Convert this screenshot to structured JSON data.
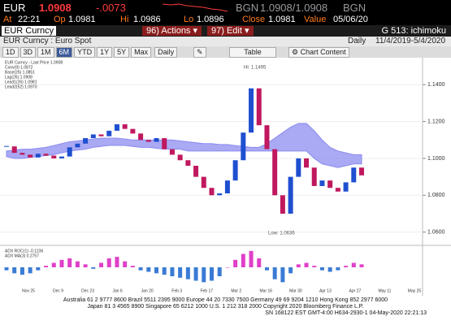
{
  "header": {
    "ticker": "EUR",
    "last": "1.0908",
    "change": "-.0073",
    "source_left": "BGN",
    "bid_ask": "1.0908/1.0908",
    "source_right": "BGN",
    "time_label": "At",
    "time": "22:21",
    "open_label": "Op",
    "open": "1.0981",
    "high_label": "Hi",
    "high": "1.0986",
    "low_label": "Lo",
    "low": "1.0896",
    "close_label": "Close",
    "close": "1.0981",
    "value_label": "Value",
    "value_date": "05/06/20"
  },
  "toolbar": {
    "security": "EUR Curncy",
    "actions_num": "96)",
    "actions": "Actions",
    "edit_num": "97)",
    "edit": "Edit",
    "page_id": "G 513: ichimoku"
  },
  "subheader": {
    "name": "EUR Curncy : Euro Spot",
    "frequency": "Daily",
    "range": "11/4/2019-5/4/2020"
  },
  "controls": {
    "buttons": [
      "1D",
      "3D",
      "1M",
      "6M",
      "YTD",
      "1Y",
      "5Y",
      "Max"
    ],
    "active": 3,
    "period": "Daily",
    "table": "Table",
    "chart_content": "Chart Content"
  },
  "chart_data": {
    "type": "candlestick",
    "legend": [
      "EUR Curncy - Last Price 1.0908",
      "Conv(9) 1.0872",
      "Base(26) 1.0851",
      "Lag(26) 1.0908",
      "Lead1(26) 1.0981",
      "Lead2(52) 1.0970"
    ],
    "annotations": [
      "Hi: 1.1495",
      "Low: 1.0636"
    ],
    "values": [
      1.1065,
      1.103,
      1.102,
      1.1005,
      1.1025,
      1.1015,
      1.1,
      1.101,
      1.106,
      1.108,
      1.111,
      1.113,
      1.112,
      1.115,
      1.1185,
      1.116,
      1.1135,
      1.11,
      1.109,
      1.111,
      1.105,
      1.102,
      1.099,
      1.096,
      1.09,
      1.084,
      1.08,
      1.081,
      1.088,
      1.099,
      1.114,
      1.138,
      1.118,
      1.105,
      1.08,
      1.07,
      1.09,
      1.1,
      1.095,
      1.085,
      1.088,
      1.084,
      1.082,
      1.087,
      1.095,
      1.0908
    ],
    "up_color": "#1f4fd0",
    "down_color": "#c0185e",
    "cloud_top": [
      1.104,
      1.1045,
      1.105,
      1.105,
      1.1055,
      1.106,
      1.107,
      1.108,
      1.109,
      1.1095,
      1.11,
      1.1105,
      1.111,
      1.111,
      1.111,
      1.1105,
      1.11,
      1.11,
      1.11,
      1.11,
      1.11,
      1.11,
      1.1095,
      1.109,
      1.1085,
      1.108,
      1.108,
      1.1075,
      1.1075,
      1.107,
      1.1065,
      1.106,
      1.106,
      1.108,
      1.111,
      1.114,
      1.117,
      1.119,
      1.119,
      1.115,
      1.11,
      1.106,
      1.104,
      1.103,
      1.102,
      1.102
    ],
    "cloud_bottom": [
      1.101,
      1.1,
      1.1,
      1.1005,
      1.101,
      1.1015,
      1.102,
      1.103,
      1.104,
      1.1045,
      1.105,
      1.106,
      1.1065,
      1.107,
      1.107,
      1.107,
      1.1065,
      1.106,
      1.106,
      1.1055,
      1.105,
      1.105,
      1.105,
      1.104,
      1.104,
      1.104,
      1.104,
      1.104,
      1.104,
      1.104,
      1.104,
      1.104,
      1.104,
      1.104,
      1.104,
      1.104,
      1.104,
      1.104,
      1.104,
      1.1,
      1.097,
      1.096,
      1.095,
      1.096,
      1.097,
      1.097
    ],
    "cloud_color": "#8c8cf0",
    "ylim": [
      1.055,
      1.152
    ],
    "yticks": [
      {
        "value": 1.06,
        "label": "1.0600"
      },
      {
        "value": 1.08,
        "label": "1.0800"
      },
      {
        "value": 1.1,
        "label": "1.1000"
      },
      {
        "value": 1.12,
        "label": "1.1200"
      },
      {
        "value": 1.14,
        "label": "1.1400"
      }
    ],
    "xtick_labels": [
      "Nov 25",
      "Dec 9",
      "Dec 23",
      "Jan 6",
      "Jan 20",
      "Feb 3",
      "Feb 17",
      "Mar 2",
      "Mar 16",
      "Mar 30",
      "Apr 13",
      "Apr 27",
      "May 11",
      "May 25"
    ],
    "lower_legend": [
      "ADX ROC(1) -0.1236",
      "ADX MA(3) 0.2757"
    ],
    "lower_values": [
      -0.002,
      -0.004,
      -0.005,
      -0.004,
      -0.002,
      0.001,
      0.003,
      0.005,
      0.006,
      0.004,
      0.002,
      -0.001,
      0.003,
      0.006,
      0.007,
      0.004,
      0.001,
      -0.002,
      -0.003,
      -0.004,
      -0.005,
      -0.006,
      -0.007,
      -0.008,
      -0.009,
      -0.01,
      -0.009,
      -0.006,
      0.0,
      0.005,
      0.009,
      0.011,
      0.006,
      -0.002,
      -0.008,
      -0.01,
      -0.004,
      0.002,
      0.003,
      0.001,
      -0.002,
      -0.003,
      -0.002,
      0.001,
      0.003,
      0.002
    ],
    "lower_ylim": [
      -0.012,
      0.012
    ],
    "lower_pos_color": "#e040c8",
    "lower_neg_color": "#3a7bd5"
  },
  "footer": [
    "Australia 61 2 9777 8600 Brazil 5511 2395 9000 Europe 44 20 7330 7500 Germany 49 69 9204 1210 Hong Kong 852 2977 6000",
    "Japan 81 3 4565 8900 Singapore 65 6212 1000 U.S. 1 212 318 2000 Copyright 2020 Bloomberg Finance L.P.",
    "SN 168122 EST GMT-4:00 H634-2930-1 04-May-2020 22:21:13"
  ]
}
